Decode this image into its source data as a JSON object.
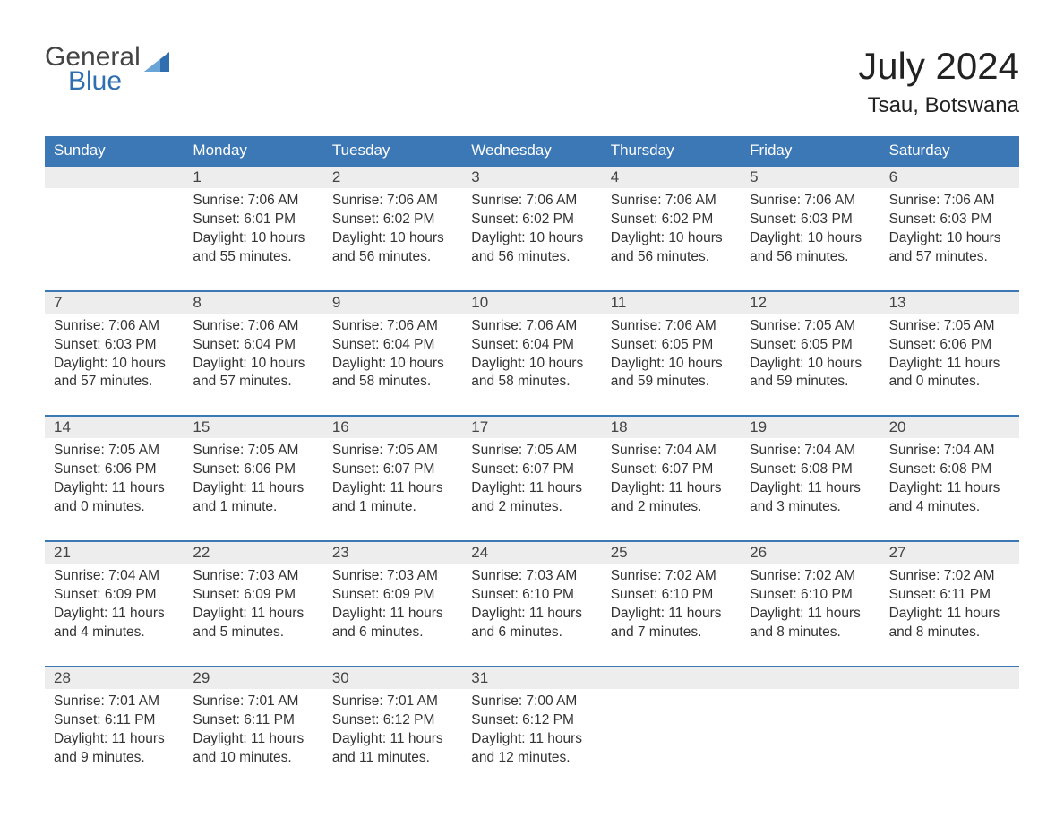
{
  "logo": {
    "general": "General",
    "blue": "Blue",
    "brand_color": "#2f6fb0"
  },
  "header": {
    "month": "July 2024",
    "location": "Tsau, Botswana"
  },
  "calendar": {
    "type": "calendar-table",
    "header_bg": "#3b78b5",
    "header_text_color": "#ffffff",
    "daynum_bg": "#ededed",
    "week_border_color": "#3b78b5",
    "text_color": "#333333",
    "background_color": "#ffffff",
    "day_names": [
      "Sunday",
      "Monday",
      "Tuesday",
      "Wednesday",
      "Thursday",
      "Friday",
      "Saturday"
    ],
    "labels": {
      "sunrise": "Sunrise:",
      "sunset": "Sunset:",
      "daylight": "Daylight:"
    },
    "weeks": [
      [
        {
          "day": "",
          "sunrise": "",
          "sunset": "",
          "daylight1": "",
          "daylight2": ""
        },
        {
          "day": "1",
          "sunrise": "7:06 AM",
          "sunset": "6:01 PM",
          "daylight1": "10 hours",
          "daylight2": "and 55 minutes."
        },
        {
          "day": "2",
          "sunrise": "7:06 AM",
          "sunset": "6:02 PM",
          "daylight1": "10 hours",
          "daylight2": "and 56 minutes."
        },
        {
          "day": "3",
          "sunrise": "7:06 AM",
          "sunset": "6:02 PM",
          "daylight1": "10 hours",
          "daylight2": "and 56 minutes."
        },
        {
          "day": "4",
          "sunrise": "7:06 AM",
          "sunset": "6:02 PM",
          "daylight1": "10 hours",
          "daylight2": "and 56 minutes."
        },
        {
          "day": "5",
          "sunrise": "7:06 AM",
          "sunset": "6:03 PM",
          "daylight1": "10 hours",
          "daylight2": "and 56 minutes."
        },
        {
          "day": "6",
          "sunrise": "7:06 AM",
          "sunset": "6:03 PM",
          "daylight1": "10 hours",
          "daylight2": "and 57 minutes."
        }
      ],
      [
        {
          "day": "7",
          "sunrise": "7:06 AM",
          "sunset": "6:03 PM",
          "daylight1": "10 hours",
          "daylight2": "and 57 minutes."
        },
        {
          "day": "8",
          "sunrise": "7:06 AM",
          "sunset": "6:04 PM",
          "daylight1": "10 hours",
          "daylight2": "and 57 minutes."
        },
        {
          "day": "9",
          "sunrise": "7:06 AM",
          "sunset": "6:04 PM",
          "daylight1": "10 hours",
          "daylight2": "and 58 minutes."
        },
        {
          "day": "10",
          "sunrise": "7:06 AM",
          "sunset": "6:04 PM",
          "daylight1": "10 hours",
          "daylight2": "and 58 minutes."
        },
        {
          "day": "11",
          "sunrise": "7:06 AM",
          "sunset": "6:05 PM",
          "daylight1": "10 hours",
          "daylight2": "and 59 minutes."
        },
        {
          "day": "12",
          "sunrise": "7:05 AM",
          "sunset": "6:05 PM",
          "daylight1": "10 hours",
          "daylight2": "and 59 minutes."
        },
        {
          "day": "13",
          "sunrise": "7:05 AM",
          "sunset": "6:06 PM",
          "daylight1": "11 hours",
          "daylight2": "and 0 minutes."
        }
      ],
      [
        {
          "day": "14",
          "sunrise": "7:05 AM",
          "sunset": "6:06 PM",
          "daylight1": "11 hours",
          "daylight2": "and 0 minutes."
        },
        {
          "day": "15",
          "sunrise": "7:05 AM",
          "sunset": "6:06 PM",
          "daylight1": "11 hours",
          "daylight2": "and 1 minute."
        },
        {
          "day": "16",
          "sunrise": "7:05 AM",
          "sunset": "6:07 PM",
          "daylight1": "11 hours",
          "daylight2": "and 1 minute."
        },
        {
          "day": "17",
          "sunrise": "7:05 AM",
          "sunset": "6:07 PM",
          "daylight1": "11 hours",
          "daylight2": "and 2 minutes."
        },
        {
          "day": "18",
          "sunrise": "7:04 AM",
          "sunset": "6:07 PM",
          "daylight1": "11 hours",
          "daylight2": "and 2 minutes."
        },
        {
          "day": "19",
          "sunrise": "7:04 AM",
          "sunset": "6:08 PM",
          "daylight1": "11 hours",
          "daylight2": "and 3 minutes."
        },
        {
          "day": "20",
          "sunrise": "7:04 AM",
          "sunset": "6:08 PM",
          "daylight1": "11 hours",
          "daylight2": "and 4 minutes."
        }
      ],
      [
        {
          "day": "21",
          "sunrise": "7:04 AM",
          "sunset": "6:09 PM",
          "daylight1": "11 hours",
          "daylight2": "and 4 minutes."
        },
        {
          "day": "22",
          "sunrise": "7:03 AM",
          "sunset": "6:09 PM",
          "daylight1": "11 hours",
          "daylight2": "and 5 minutes."
        },
        {
          "day": "23",
          "sunrise": "7:03 AM",
          "sunset": "6:09 PM",
          "daylight1": "11 hours",
          "daylight2": "and 6 minutes."
        },
        {
          "day": "24",
          "sunrise": "7:03 AM",
          "sunset": "6:10 PM",
          "daylight1": "11 hours",
          "daylight2": "and 6 minutes."
        },
        {
          "day": "25",
          "sunrise": "7:02 AM",
          "sunset": "6:10 PM",
          "daylight1": "11 hours",
          "daylight2": "and 7 minutes."
        },
        {
          "day": "26",
          "sunrise": "7:02 AM",
          "sunset": "6:10 PM",
          "daylight1": "11 hours",
          "daylight2": "and 8 minutes."
        },
        {
          "day": "27",
          "sunrise": "7:02 AM",
          "sunset": "6:11 PM",
          "daylight1": "11 hours",
          "daylight2": "and 8 minutes."
        }
      ],
      [
        {
          "day": "28",
          "sunrise": "7:01 AM",
          "sunset": "6:11 PM",
          "daylight1": "11 hours",
          "daylight2": "and 9 minutes."
        },
        {
          "day": "29",
          "sunrise": "7:01 AM",
          "sunset": "6:11 PM",
          "daylight1": "11 hours",
          "daylight2": "and 10 minutes."
        },
        {
          "day": "30",
          "sunrise": "7:01 AM",
          "sunset": "6:12 PM",
          "daylight1": "11 hours",
          "daylight2": "and 11 minutes."
        },
        {
          "day": "31",
          "sunrise": "7:00 AM",
          "sunset": "6:12 PM",
          "daylight1": "11 hours",
          "daylight2": "and 12 minutes."
        },
        {
          "day": "",
          "sunrise": "",
          "sunset": "",
          "daylight1": "",
          "daylight2": ""
        },
        {
          "day": "",
          "sunrise": "",
          "sunset": "",
          "daylight1": "",
          "daylight2": ""
        },
        {
          "day": "",
          "sunrise": "",
          "sunset": "",
          "daylight1": "",
          "daylight2": ""
        }
      ]
    ]
  }
}
